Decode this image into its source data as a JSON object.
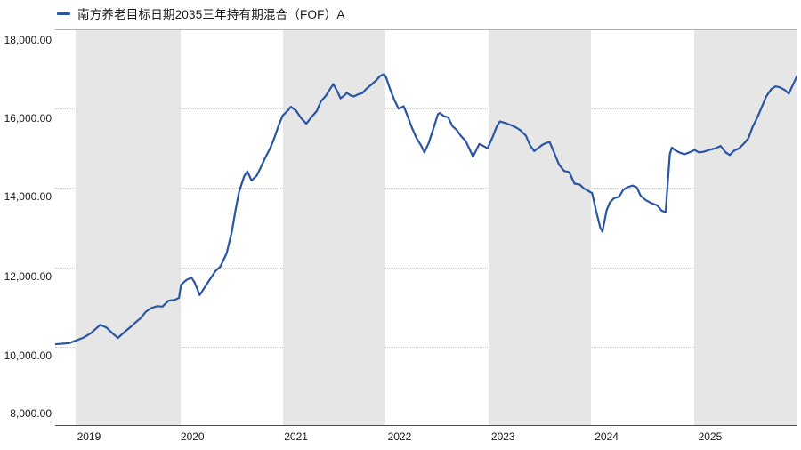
{
  "legend": {
    "label": "南方养老目标日期2035三年持有期混合（FOF）A",
    "marker_color": "#2a55a5"
  },
  "colors": {
    "line": "#2a55a5",
    "band": "#e6e6e6",
    "grid_dotted": "#c9c9c9",
    "grid_top": "#b0b0b0",
    "axis_bottom": "#4d4d4d",
    "text": "#1a1a1a"
  },
  "chart_data": {
    "type": "line",
    "title": "南方养老目标日期2035三年持有期混合（FOF）A",
    "xlabel": "",
    "ylabel": "",
    "legend_position": "top-left",
    "grid": "horizontal-dotted, alternating-year-bands",
    "xlim": [
      2018.674,
      2025.843
    ],
    "ylim": [
      8000,
      18000
    ],
    "yticks": [
      {
        "value": 18000,
        "label": "18,000.00",
        "dy": 12
      },
      {
        "value": 16000,
        "label": "16,000.00",
        "dy": 11
      },
      {
        "value": 14000,
        "label": "14,000.00",
        "dy": 10
      },
      {
        "value": 12000,
        "label": "12,000.00",
        "dy": 10
      },
      {
        "value": 10000,
        "label": "10,000.00",
        "dy": 10
      },
      {
        "value": 8000,
        "label": "8,000.00",
        "dy": -14
      }
    ],
    "xticks": [
      {
        "value": 2019,
        "label": "2019"
      },
      {
        "value": 2020,
        "label": "2020"
      },
      {
        "value": 2021,
        "label": "2021"
      },
      {
        "value": 2022,
        "label": "2022"
      },
      {
        "value": 2023,
        "label": "2023"
      },
      {
        "value": 2024,
        "label": "2024"
      },
      {
        "value": 2025,
        "label": "2025"
      }
    ],
    "bands": [
      [
        2018.871,
        2019.886
      ],
      [
        2020.874,
        2021.863
      ],
      [
        2022.861,
        2023.85
      ],
      [
        2024.847,
        2025.845
      ]
    ],
    "series": [
      {
        "name": "南方养老目标日期2035三年持有期混合（FOF）A",
        "color": "#2a55a5",
        "points": [
          [
            2018.67,
            10060
          ],
          [
            2018.74,
            10075
          ],
          [
            2018.81,
            10090
          ],
          [
            2018.88,
            10160
          ],
          [
            2018.95,
            10230
          ],
          [
            2019.02,
            10340
          ],
          [
            2019.07,
            10460
          ],
          [
            2019.11,
            10550
          ],
          [
            2019.17,
            10480
          ],
          [
            2019.23,
            10330
          ],
          [
            2019.28,
            10220
          ],
          [
            2019.34,
            10360
          ],
          [
            2019.4,
            10490
          ],
          [
            2019.45,
            10610
          ],
          [
            2019.5,
            10720
          ],
          [
            2019.55,
            10880
          ],
          [
            2019.6,
            10970
          ],
          [
            2019.66,
            11020
          ],
          [
            2019.71,
            11010
          ],
          [
            2019.77,
            11160
          ],
          [
            2019.83,
            11180
          ],
          [
            2019.87,
            11230
          ],
          [
            2019.89,
            11560
          ],
          [
            2019.94,
            11680
          ],
          [
            2019.99,
            11740
          ],
          [
            2020.02,
            11620
          ],
          [
            2020.07,
            11300
          ],
          [
            2020.12,
            11500
          ],
          [
            2020.17,
            11700
          ],
          [
            2020.22,
            11900
          ],
          [
            2020.27,
            12020
          ],
          [
            2020.33,
            12350
          ],
          [
            2020.38,
            12900
          ],
          [
            2020.42,
            13500
          ],
          [
            2020.45,
            13900
          ],
          [
            2020.5,
            14300
          ],
          [
            2020.53,
            14420
          ],
          [
            2020.57,
            14190
          ],
          [
            2020.62,
            14310
          ],
          [
            2020.66,
            14520
          ],
          [
            2020.7,
            14750
          ],
          [
            2020.75,
            15000
          ],
          [
            2020.79,
            15260
          ],
          [
            2020.83,
            15560
          ],
          [
            2020.87,
            15820
          ],
          [
            2020.92,
            15950
          ],
          [
            2020.95,
            16050
          ],
          [
            2021.0,
            15950
          ],
          [
            2021.05,
            15760
          ],
          [
            2021.1,
            15620
          ],
          [
            2021.15,
            15790
          ],
          [
            2021.2,
            15940
          ],
          [
            2021.24,
            16180
          ],
          [
            2021.29,
            16330
          ],
          [
            2021.33,
            16500
          ],
          [
            2021.36,
            16620
          ],
          [
            2021.4,
            16430
          ],
          [
            2021.43,
            16260
          ],
          [
            2021.47,
            16340
          ],
          [
            2021.49,
            16400
          ],
          [
            2021.53,
            16330
          ],
          [
            2021.56,
            16310
          ],
          [
            2021.6,
            16360
          ],
          [
            2021.64,
            16390
          ],
          [
            2021.68,
            16500
          ],
          [
            2021.73,
            16610
          ],
          [
            2021.77,
            16700
          ],
          [
            2021.81,
            16820
          ],
          [
            2021.85,
            16870
          ],
          [
            2021.87,
            16790
          ],
          [
            2021.91,
            16480
          ],
          [
            2021.95,
            16220
          ],
          [
            2021.99,
            16000
          ],
          [
            2022.04,
            16060
          ],
          [
            2022.08,
            15800
          ],
          [
            2022.12,
            15520
          ],
          [
            2022.16,
            15280
          ],
          [
            2022.21,
            15060
          ],
          [
            2022.24,
            14900
          ],
          [
            2022.28,
            15120
          ],
          [
            2022.33,
            15520
          ],
          [
            2022.37,
            15860
          ],
          [
            2022.39,
            15890
          ],
          [
            2022.43,
            15810
          ],
          [
            2022.47,
            15780
          ],
          [
            2022.51,
            15560
          ],
          [
            2022.55,
            15470
          ],
          [
            2022.59,
            15320
          ],
          [
            2022.64,
            15180
          ],
          [
            2022.68,
            14960
          ],
          [
            2022.71,
            14790
          ],
          [
            2022.77,
            15110
          ],
          [
            2022.81,
            15060
          ],
          [
            2022.85,
            15000
          ],
          [
            2022.9,
            15290
          ],
          [
            2022.94,
            15560
          ],
          [
            2022.97,
            15680
          ],
          [
            2023.02,
            15640
          ],
          [
            2023.08,
            15580
          ],
          [
            2023.13,
            15520
          ],
          [
            2023.17,
            15450
          ],
          [
            2023.22,
            15320
          ],
          [
            2023.26,
            15080
          ],
          [
            2023.3,
            14930
          ],
          [
            2023.34,
            15010
          ],
          [
            2023.38,
            15090
          ],
          [
            2023.42,
            15140
          ],
          [
            2023.45,
            15160
          ],
          [
            2023.5,
            14850
          ],
          [
            2023.54,
            14590
          ],
          [
            2023.59,
            14430
          ],
          [
            2023.64,
            14400
          ],
          [
            2023.69,
            14110
          ],
          [
            2023.74,
            14090
          ],
          [
            2023.78,
            13990
          ],
          [
            2023.82,
            13930
          ],
          [
            2023.86,
            13870
          ],
          [
            2023.9,
            13400
          ],
          [
            2023.94,
            12990
          ],
          [
            2023.96,
            12900
          ],
          [
            2024.0,
            13440
          ],
          [
            2024.03,
            13630
          ],
          [
            2024.07,
            13740
          ],
          [
            2024.12,
            13780
          ],
          [
            2024.16,
            13950
          ],
          [
            2024.2,
            14020
          ],
          [
            2024.25,
            14060
          ],
          [
            2024.29,
            14020
          ],
          [
            2024.33,
            13800
          ],
          [
            2024.38,
            13690
          ],
          [
            2024.43,
            13620
          ],
          [
            2024.49,
            13560
          ],
          [
            2024.53,
            13430
          ],
          [
            2024.57,
            13390
          ],
          [
            2024.61,
            14850
          ],
          [
            2024.63,
            15020
          ],
          [
            2024.67,
            14940
          ],
          [
            2024.71,
            14890
          ],
          [
            2024.75,
            14850
          ],
          [
            2024.8,
            14900
          ],
          [
            2024.85,
            14960
          ],
          [
            2024.89,
            14900
          ],
          [
            2024.93,
            14910
          ],
          [
            2024.98,
            14950
          ],
          [
            2025.02,
            14980
          ],
          [
            2025.06,
            15010
          ],
          [
            2025.1,
            15060
          ],
          [
            2025.15,
            14900
          ],
          [
            2025.19,
            14830
          ],
          [
            2025.23,
            14940
          ],
          [
            2025.28,
            15000
          ],
          [
            2025.33,
            15130
          ],
          [
            2025.37,
            15260
          ],
          [
            2025.41,
            15540
          ],
          [
            2025.46,
            15800
          ],
          [
            2025.5,
            16050
          ],
          [
            2025.54,
            16300
          ],
          [
            2025.59,
            16490
          ],
          [
            2025.63,
            16560
          ],
          [
            2025.67,
            16540
          ],
          [
            2025.72,
            16470
          ],
          [
            2025.76,
            16380
          ],
          [
            2025.79,
            16550
          ],
          [
            2025.84,
            16830
          ]
        ]
      }
    ]
  }
}
